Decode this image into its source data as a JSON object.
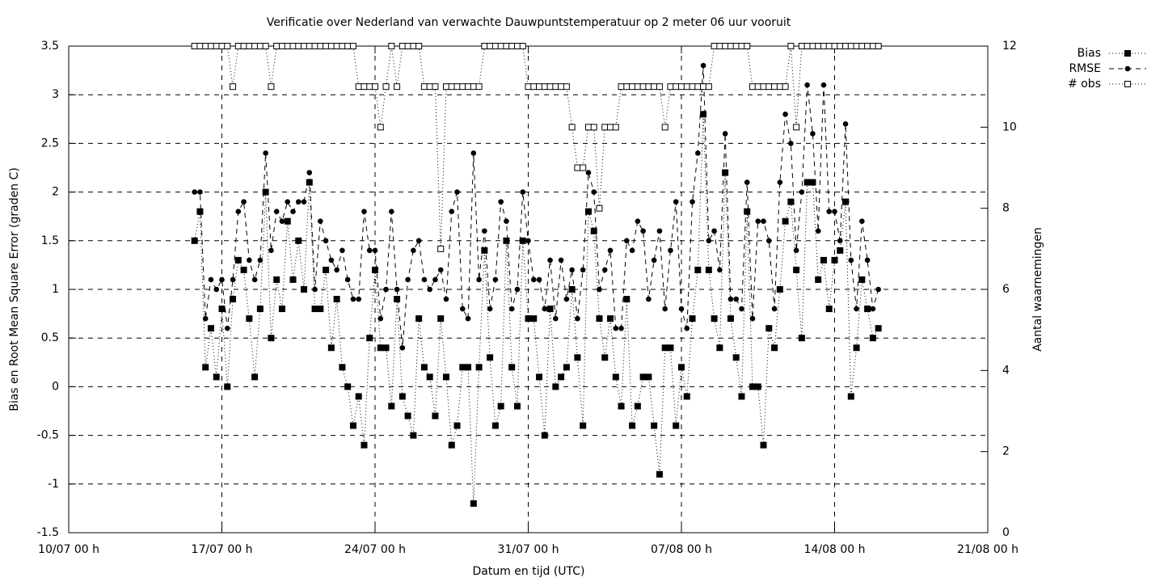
{
  "chart_data": {
    "type": "line",
    "title": "Verificatie over Nederland van verwachte Dauwpuntstemperatuur op 2 meter 06 uur vooruit",
    "xlabel": "Datum en tijd (UTC)",
    "ylabel": "Bias en Root Mean Square Error (graden C)",
    "y2label": "Aantal waarnemingen",
    "xlim": [
      "10/07 00 h",
      "21/08 00 h"
    ],
    "xticks": [
      "10/07 00 h",
      "17/07 00 h",
      "24/07 00 h",
      "31/07 00 h",
      "07/08 00 h",
      "14/08 00 h",
      "21/08 00 h"
    ],
    "ylim": [
      -1.5,
      3.5
    ],
    "yticks": [
      -1.5,
      -1,
      -0.5,
      0,
      0.5,
      1,
      1.5,
      2,
      2.5,
      3,
      3.5
    ],
    "y2lim": [
      0,
      12
    ],
    "y2ticks": [
      0,
      2,
      4,
      6,
      8,
      10,
      12
    ],
    "grid": true,
    "legend": "outside-top-right",
    "x": [
      "15/07 18 h",
      "16/07 00 h",
      "16/07 06 h",
      "16/07 12 h",
      "16/07 18 h",
      "17/07 00 h",
      "17/07 06 h",
      "17/07 12 h",
      "17/07 18 h",
      "18/07 00 h",
      "18/07 06 h",
      "18/07 12 h",
      "18/07 18 h",
      "19/07 00 h",
      "19/07 06 h",
      "19/07 12 h",
      "19/07 18 h",
      "20/07 00 h",
      "20/07 06 h",
      "20/07 12 h",
      "20/07 18 h",
      "21/07 00 h",
      "21/07 06 h",
      "21/07 12 h",
      "21/07 18 h",
      "22/07 00 h",
      "22/07 06 h",
      "22/07 12 h",
      "22/07 18 h",
      "23/07 00 h",
      "23/07 06 h",
      "23/07 12 h",
      "23/07 18 h",
      "24/07 00 h",
      "24/07 06 h",
      "24/07 12 h",
      "24/07 18 h",
      "25/07 00 h",
      "25/07 06 h",
      "25/07 12 h",
      "25/07 18 h",
      "26/07 00 h",
      "26/07 06 h",
      "26/07 12 h",
      "26/07 18 h",
      "27/07 00 h",
      "27/07 06 h",
      "27/07 12 h",
      "27/07 18 h",
      "28/07 00 h",
      "28/07 06 h",
      "28/07 12 h",
      "28/07 18 h",
      "29/07 00 h",
      "29/07 06 h",
      "29/07 12 h",
      "29/07 18 h",
      "30/07 00 h",
      "30/07 06 h",
      "30/07 12 h",
      "30/07 18 h",
      "31/07 00 h",
      "31/07 06 h",
      "31/07 12 h",
      "31/07 18 h",
      "01/08 00 h",
      "01/08 06 h",
      "01/08 12 h",
      "01/08 18 h",
      "02/08 00 h",
      "02/08 06 h",
      "02/08 12 h",
      "02/08 18 h",
      "03/08 00 h",
      "03/08 06 h",
      "03/08 12 h",
      "03/08 18 h",
      "04/08 00 h",
      "04/08 06 h",
      "04/08 12 h",
      "04/08 18 h",
      "05/08 00 h",
      "05/08 06 h",
      "05/08 12 h",
      "05/08 18 h",
      "06/08 00 h",
      "06/08 06 h",
      "06/08 12 h",
      "06/08 18 h",
      "07/08 00 h",
      "07/08 06 h",
      "07/08 12 h",
      "07/08 18 h",
      "08/08 00 h",
      "08/08 06 h",
      "08/08 12 h",
      "08/08 18 h",
      "09/08 00 h",
      "09/08 06 h",
      "09/08 12 h",
      "09/08 18 h",
      "10/08 00 h",
      "10/08 06 h",
      "10/08 12 h",
      "10/08 18 h",
      "11/08 00 h",
      "11/08 06 h",
      "11/08 12 h",
      "11/08 18 h",
      "12/08 00 h",
      "12/08 06 h",
      "12/08 12 h",
      "12/08 18 h",
      "13/08 00 h",
      "13/08 06 h",
      "13/08 12 h",
      "13/08 18 h",
      "14/08 00 h",
      "14/08 06 h",
      "14/08 12 h",
      "14/08 18 h",
      "15/08 00 h",
      "15/08 06 h",
      "15/08 12 h",
      "15/08 18 h",
      "16/08 00 h"
    ],
    "series": [
      {
        "name": "Bias",
        "color": "#000000",
        "line_style": "dotted",
        "marker": "filled-square",
        "axis": "y",
        "values": [
          1.5,
          1.8,
          0.2,
          0.6,
          0.1,
          0.8,
          0.0,
          0.9,
          1.3,
          1.2,
          0.7,
          0.1,
          0.8,
          2.0,
          0.5,
          1.1,
          0.8,
          1.7,
          1.1,
          1.5,
          1.0,
          2.1,
          0.8,
          0.8,
          1.2,
          0.4,
          0.9,
          0.2,
          0.0,
          -0.4,
          -0.1,
          -0.6,
          0.5,
          1.2,
          0.4,
          0.4,
          -0.2,
          0.9,
          -0.1,
          -0.3,
          -0.5,
          0.7,
          0.2,
          0.1,
          -0.3,
          0.7,
          0.1,
          -0.6,
          -0.4,
          0.2,
          0.2,
          -1.2,
          0.2,
          1.4,
          0.3,
          -0.4,
          -0.2,
          1.5,
          0.2,
          -0.2,
          1.5,
          0.7,
          0.7,
          0.1,
          -0.5,
          0.8,
          0.0,
          0.1,
          0.2,
          1.0,
          0.3,
          -0.4,
          1.8,
          1.6,
          0.7,
          0.3,
          0.7,
          0.1,
          -0.2,
          0.9,
          -0.4,
          -0.2,
          0.1,
          0.1,
          -0.4,
          -0.9,
          0.4,
          0.4,
          -0.4,
          0.2,
          -0.1,
          0.7,
          1.2,
          2.8,
          1.2,
          0.7,
          0.4,
          2.2,
          0.7,
          0.3,
          -0.1,
          1.8,
          0.0,
          0.0,
          -0.6,
          0.6,
          0.4,
          1.0,
          1.7,
          1.9,
          1.2,
          0.5,
          2.1,
          2.1,
          1.1,
          1.3,
          0.8,
          1.3,
          1.4,
          1.9,
          -0.1,
          0.4,
          1.1,
          0.8,
          0.5,
          0.6
        ]
      },
      {
        "name": "RMSE",
        "color": "#000000",
        "line_style": "dashed",
        "marker": "filled-circle",
        "axis": "y",
        "values": [
          2.0,
          2.0,
          0.7,
          1.1,
          1.0,
          1.1,
          0.6,
          1.1,
          1.8,
          1.9,
          1.3,
          1.1,
          1.3,
          2.4,
          1.4,
          1.8,
          1.7,
          1.9,
          1.8,
          1.9,
          1.9,
          2.2,
          1.0,
          1.7,
          1.5,
          1.3,
          1.2,
          1.4,
          1.1,
          0.9,
          0.9,
          1.8,
          1.4,
          1.4,
          0.7,
          1.0,
          1.8,
          1.0,
          0.4,
          1.1,
          1.4,
          1.5,
          1.1,
          1.0,
          1.1,
          1.2,
          0.9,
          1.8,
          2.0,
          0.8,
          0.7,
          2.4,
          1.1,
          1.6,
          0.8,
          1.1,
          1.9,
          1.7,
          0.8,
          1.0,
          2.0,
          1.5,
          1.1,
          1.1,
          0.8,
          1.3,
          0.7,
          1.3,
          0.9,
          1.2,
          0.7,
          1.2,
          2.2,
          2.0,
          1.0,
          1.2,
          1.4,
          0.6,
          0.6,
          1.5,
          1.4,
          1.7,
          1.6,
          0.9,
          1.3,
          1.6,
          0.8,
          1.4,
          1.9,
          0.8,
          0.6,
          1.9,
          2.4,
          3.3,
          1.5,
          1.6,
          1.2,
          2.6,
          0.9,
          0.9,
          0.8,
          2.1,
          0.7,
          1.7,
          1.7,
          1.5,
          0.8,
          2.1,
          2.8,
          2.5,
          1.4,
          2.0,
          3.1,
          2.6,
          1.6,
          3.1,
          1.8,
          1.8,
          1.5,
          2.7,
          1.3,
          0.8,
          1.7,
          1.3,
          0.8,
          1.0
        ]
      },
      {
        "name": "# obs",
        "color": "#000000",
        "line_style": "dotted",
        "marker": "open-square",
        "axis": "y2",
        "values": [
          12,
          12,
          12,
          12,
          12,
          12,
          12,
          11,
          12,
          12,
          12,
          12,
          12,
          12,
          11,
          12,
          12,
          12,
          12,
          12,
          12,
          12,
          12,
          12,
          12,
          12,
          12,
          12,
          12,
          12,
          11,
          11,
          11,
          11,
          10,
          11,
          12,
          11,
          12,
          12,
          12,
          12,
          11,
          11,
          11,
          7,
          11,
          11,
          11,
          11,
          11,
          11,
          11,
          12,
          12,
          12,
          12,
          12,
          12,
          12,
          12,
          11,
          11,
          11,
          11,
          11,
          11,
          11,
          11,
          10,
          9,
          9,
          10,
          10,
          8,
          10,
          10,
          10,
          11,
          11,
          11,
          11,
          11,
          11,
          11,
          11,
          10,
          11,
          11,
          11,
          11,
          11,
          11,
          11,
          11,
          12,
          12,
          12,
          12,
          12,
          12,
          12,
          11,
          11,
          11,
          11,
          11,
          11,
          11,
          12,
          10,
          12,
          12,
          12,
          12,
          12,
          12,
          12,
          12,
          12,
          12,
          12,
          12,
          12,
          12,
          12
        ]
      }
    ]
  }
}
